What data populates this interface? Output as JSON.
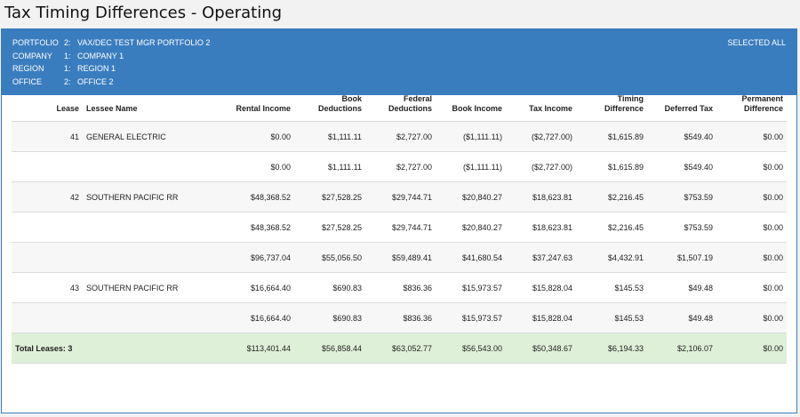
{
  "title": "Tax Timing Differences - Operating",
  "header": {
    "filters": [
      {
        "label": "PORTFOLIO",
        "code": "2:",
        "value": "VAX/DEC TEST MGR PORTFOLIO 2"
      },
      {
        "label": "COMPANY",
        "code": "1:",
        "value": "COMPANY 1"
      },
      {
        "label": "REGION",
        "code": "1:",
        "value": "REGION 1"
      },
      {
        "label": "OFFICE",
        "code": "2:",
        "value": "OFFICE 2"
      }
    ],
    "selected_all": "SELECTED ALL"
  },
  "table": {
    "columns": [
      {
        "l1": "",
        "l2": "Lease"
      },
      {
        "l1": "",
        "l2": "Lessee Name"
      },
      {
        "l1": "",
        "l2": "Rental Income"
      },
      {
        "l1": "Book",
        "l2": "Deductions"
      },
      {
        "l1": "Federal",
        "l2": "Deductions"
      },
      {
        "l1": "",
        "l2": "Book Income"
      },
      {
        "l1": "",
        "l2": "Tax Income"
      },
      {
        "l1": "Timing",
        "l2": "Difference"
      },
      {
        "l1": "",
        "l2": "Deferred Tax"
      },
      {
        "l1": "Permanent",
        "l2": "Difference"
      }
    ],
    "rows": [
      {
        "lease": "41",
        "lessee": "GENERAL ELECTRIC",
        "rental": "$0.00",
        "book_ded": "$1,111.11",
        "fed_ded": "$2,727.00",
        "book_inc": "($1,111.11)",
        "tax_inc": "($2,727.00)",
        "timing": "$1,615.89",
        "deferred": "$549.40",
        "permanent": "$0.00"
      },
      {
        "lease": "",
        "lessee": "",
        "rental": "$0.00",
        "book_ded": "$1,111.11",
        "fed_ded": "$2,727.00",
        "book_inc": "($1,111.11)",
        "tax_inc": "($2,727.00)",
        "timing": "$1,615.89",
        "deferred": "$549.40",
        "permanent": "$0.00"
      },
      {
        "lease": "42",
        "lessee": "SOUTHERN PACIFIC RR",
        "rental": "$48,368.52",
        "book_ded": "$27,528.25",
        "fed_ded": "$29,744.71",
        "book_inc": "$20,840.27",
        "tax_inc": "$18,623.81",
        "timing": "$2,216.45",
        "deferred": "$753.59",
        "permanent": "$0.00"
      },
      {
        "lease": "",
        "lessee": "",
        "rental": "$48,368.52",
        "book_ded": "$27,528.25",
        "fed_ded": "$29,744.71",
        "book_inc": "$20,840.27",
        "tax_inc": "$18,623.81",
        "timing": "$2,216.45",
        "deferred": "$753.59",
        "permanent": "$0.00"
      },
      {
        "lease": "",
        "lessee": "",
        "rental": "$96,737.04",
        "book_ded": "$55,056.50",
        "fed_ded": "$59,489.41",
        "book_inc": "$41,680.54",
        "tax_inc": "$37,247.63",
        "timing": "$4,432.91",
        "deferred": "$1,507.19",
        "permanent": "$0.00"
      },
      {
        "lease": "43",
        "lessee": "SOUTHERN PACIFIC RR",
        "rental": "$16,664.40",
        "book_ded": "$690.83",
        "fed_ded": "$836.36",
        "book_inc": "$15,973.57",
        "tax_inc": "$15,828.04",
        "timing": "$145.53",
        "deferred": "$49.48",
        "permanent": "$0.00"
      },
      {
        "lease": "",
        "lessee": "",
        "rental": "$16,664.40",
        "book_ded": "$690.83",
        "fed_ded": "$836.36",
        "book_inc": "$15,973.57",
        "tax_inc": "$15,828.04",
        "timing": "$145.53",
        "deferred": "$49.48",
        "permanent": "$0.00"
      }
    ],
    "total": {
      "label": "Total Leases: 3",
      "rental": "$113,401.44",
      "book_ded": "$56,858.44",
      "fed_ded": "$63,052.77",
      "book_inc": "$56,543.00",
      "tax_inc": "$50,348.67",
      "timing": "$6,194.33",
      "deferred": "$2,106.07",
      "permanent": "$0.00"
    }
  }
}
